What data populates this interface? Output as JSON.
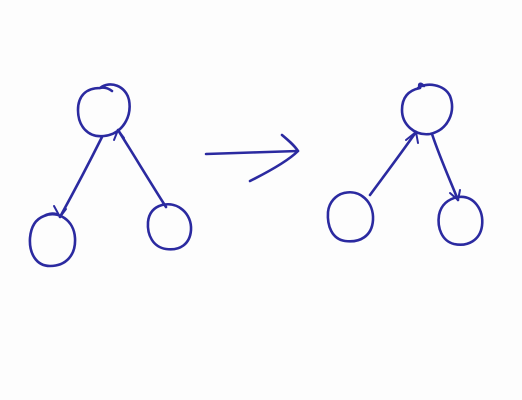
{
  "diagram": {
    "kind": "hand-drawn tree transformation",
    "ink_color": "#2b2aa0",
    "paper_color": "#fdfdfd",
    "before": {
      "nodes": [
        "root",
        "left-child",
        "right-child"
      ],
      "edges": [
        {
          "from": "root",
          "to": "left-child",
          "directed": true
        },
        {
          "from": "right-child",
          "to": "root",
          "directed": true
        }
      ]
    },
    "transition": {
      "symbol": "arrow",
      "direction": "right"
    },
    "after": {
      "nodes": [
        "root",
        "left-child",
        "right-child"
      ],
      "edges": [
        {
          "from": "left-child",
          "to": "root",
          "directed": true
        },
        {
          "from": "root",
          "to": "right-child",
          "directed": true
        }
      ]
    }
  }
}
